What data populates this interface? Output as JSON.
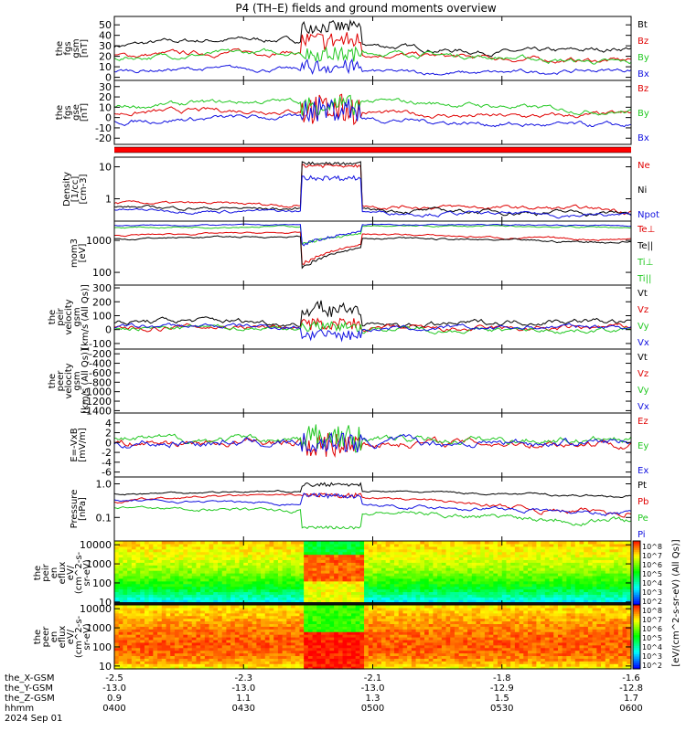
{
  "title": "P4 (TH–E) fields and ground moments overview",
  "colors": {
    "black": "#000000",
    "red": "#e00000",
    "green": "#22c822",
    "blue": "#1010e0",
    "bar": "#ff0000"
  },
  "panels": [
    {
      "id": "bgsm",
      "ylabel": [
        "the",
        "fgs",
        "gsm",
        "[nT]"
      ],
      "ticks": [
        "0",
        "10",
        "20",
        "30",
        "40",
        "50"
      ],
      "ylim": [
        -3,
        58
      ],
      "legend": [
        [
          "Bt",
          "black"
        ],
        [
          "Bz",
          "red"
        ],
        [
          "By",
          "green"
        ],
        [
          "Bx",
          "blue"
        ]
      ]
    },
    {
      "id": "bgse",
      "ylabel": [
        "the",
        "fgs",
        "gse",
        "[nT]"
      ],
      "ticks": [
        "-20",
        "-10",
        "0",
        "10",
        "20",
        "30"
      ],
      "ylim": [
        -26,
        36
      ],
      "legend": [
        [
          "Bz",
          "red"
        ],
        [
          "By",
          "green"
        ],
        [
          "Bx",
          "blue"
        ]
      ]
    },
    {
      "id": "density",
      "ylabel": [
        "Density",
        "[1/cc]",
        "[cm-3]"
      ],
      "ticks": [
        "1",
        "10"
      ],
      "log": true,
      "ylim": [
        0.2,
        20
      ],
      "legend": [
        [
          "Ne",
          "red"
        ],
        [
          "Ni",
          "black"
        ],
        [
          "Npot",
          "blue"
        ]
      ]
    },
    {
      "id": "temp",
      "ylabel": [
        "mom3",
        "[eV]"
      ],
      "ticks": [
        "100",
        "1000"
      ],
      "log": true,
      "ylim": [
        40,
        4000
      ],
      "legend": [
        [
          "Te⊥",
          "red"
        ],
        [
          "Te||",
          "black"
        ],
        [
          "Ti⊥",
          "green"
        ],
        [
          "Ti||",
          "green"
        ]
      ]
    },
    {
      "id": "vpeir",
      "ylabel": [
        "the",
        "peir",
        "velocity",
        "gsm",
        "[km/s (All Qs)]"
      ],
      "ticks": [
        "-100",
        "0",
        "100",
        "200",
        "300"
      ],
      "ylim": [
        -140,
        320
      ],
      "legend": [
        [
          "Vt",
          "black"
        ],
        [
          "Vz",
          "red"
        ],
        [
          "Vy",
          "green"
        ],
        [
          "Vx",
          "blue"
        ]
      ]
    },
    {
      "id": "vpeer",
      "ylabel": [
        "the",
        "peer",
        "velocity",
        "gsm",
        "[km/s (All Qs)]"
      ],
      "ticks": [
        "-1400",
        "-1200",
        "-1000",
        "-800",
        "-600",
        "-400",
        "-200"
      ],
      "ylim": [
        -1450,
        -100
      ],
      "legend": [
        [
          "Vt",
          "black"
        ],
        [
          "Vz",
          "red"
        ],
        [
          "Vy",
          "green"
        ],
        [
          "Vx",
          "blue"
        ]
      ]
    },
    {
      "id": "efield",
      "ylabel": [
        "E=-VxB",
        "[mV/m]"
      ],
      "ticks": [
        "-6",
        "-4",
        "-2",
        "0",
        "2",
        "4"
      ],
      "ylim": [
        -7,
        6
      ],
      "legend": [
        [
          "Ez",
          "red"
        ],
        [
          "Ey",
          "green"
        ],
        [
          "Ex",
          "blue"
        ]
      ]
    },
    {
      "id": "pressure",
      "ylabel": [
        "Pressure",
        "[nPa]"
      ],
      "ticks": [
        "0.1",
        "1.0"
      ],
      "log": true,
      "ylim": [
        0.02,
        1.6
      ],
      "legend": [
        [
          "Pt",
          "black"
        ],
        [
          "Pb",
          "red"
        ],
        [
          "Pe",
          "green"
        ],
        [
          "Pi",
          "blue"
        ]
      ]
    },
    {
      "id": "ionspec",
      "ylabel": [
        "the",
        "peir",
        "en",
        "eflux",
        "eV/",
        "(cm^2-s-",
        "sr-eV)"
      ],
      "ticks": [
        "10",
        "100",
        "1000",
        "10000"
      ],
      "spectrogram": true
    },
    {
      "id": "elecspec",
      "ylabel": [
        "the",
        "peer",
        "en",
        "eflux",
        "eV/",
        "(cm^2-s-",
        "sr-eV)"
      ],
      "ticks": [
        "10",
        "100",
        "1000",
        "10000"
      ],
      "spectrogram": true
    }
  ],
  "colorbar": {
    "label": "[eV/(cm^2-s-sr-eV) (All Qs)]",
    "ticks": [
      "10^8",
      "10^7",
      "10^6",
      "10^5",
      "10^4",
      "10^3",
      "10^2"
    ]
  },
  "xaxis": {
    "rows": [
      {
        "label": "the_X-GSM",
        "values": [
          "-2.5",
          "-2.3",
          "-2.1",
          "-1.8",
          "-1.6"
        ]
      },
      {
        "label": "the_Y-GSM",
        "values": [
          "-13.0",
          "-13.0",
          "-13.0",
          "-12.9",
          "-12.8"
        ]
      },
      {
        "label": "the_Z-GSM",
        "values": [
          "0.9",
          "1.1",
          "1.3",
          "1.5",
          "1.7"
        ]
      },
      {
        "label": "hhmm",
        "values": [
          "0400",
          "0430",
          "0500",
          "0530",
          "0600"
        ]
      }
    ],
    "date": "2024 Sep 01"
  },
  "chart_data": {
    "type": "line",
    "title": "P4 (TH–E) fields and ground moments overview",
    "x_range": [
      "0400",
      "0600"
    ],
    "x_ticks": [
      "0400",
      "0430",
      "0500",
      "0530",
      "0600"
    ],
    "date": "2024 Sep 01",
    "series": [
      {
        "name": "Bt",
        "panel": "bgsm",
        "x": [
          "0400",
          "0415",
          "0430",
          "0445",
          "0450",
          "0455",
          "0500",
          "0515",
          "0530",
          "0545",
          "0600"
        ],
        "y": [
          30,
          30,
          32,
          36,
          50,
          52,
          42,
          37,
          36,
          38,
          40
        ]
      },
      {
        "name": "Bz",
        "panel": "bgsm",
        "x": [
          "0400",
          "0415",
          "0430",
          "0445",
          "0450",
          "0455",
          "0500",
          "0515",
          "0530",
          "0545",
          "0600"
        ],
        "y": [
          18,
          22,
          25,
          28,
          40,
          35,
          28,
          23,
          22,
          20,
          22
        ]
      },
      {
        "name": "By",
        "panel": "bgsm",
        "x": [
          "0400",
          "0415",
          "0430",
          "0445",
          "0450",
          "0455",
          "0500",
          "0515",
          "0530",
          "0545",
          "0600"
        ],
        "y": [
          15,
          17,
          22,
          22,
          25,
          20,
          26,
          25,
          22,
          20,
          24
        ]
      },
      {
        "name": "Bx",
        "panel": "bgsm",
        "x": [
          "0400",
          "0415",
          "0430",
          "0445",
          "0450",
          "0455",
          "0500",
          "0515",
          "0530",
          "0545",
          "0600"
        ],
        "y": [
          8,
          6,
          5,
          3,
          12,
          14,
          5,
          3,
          3,
          6,
          8
        ]
      },
      {
        "name": "Ne",
        "panel": "density",
        "x": [
          "0400",
          "0430",
          "0445",
          "0450",
          "0455",
          "0500",
          "0515",
          "0530",
          "0600"
        ],
        "y": [
          0.7,
          0.6,
          0.5,
          12,
          10,
          0.6,
          0.5,
          0.45,
          0.4
        ]
      },
      {
        "name": "Ni",
        "panel": "density",
        "x": [
          "0400",
          "0430",
          "0445",
          "0450",
          "0455",
          "0500",
          "0515",
          "0530",
          "0600"
        ],
        "y": [
          0.5,
          0.45,
          0.4,
          14,
          12,
          0.5,
          0.4,
          0.38,
          0.35
        ]
      },
      {
        "name": "Npot",
        "panel": "density",
        "x": [
          "0400",
          "0430",
          "0445",
          "0450",
          "0455",
          "0500",
          "0515",
          "0530",
          "0600"
        ],
        "y": [
          0.4,
          0.35,
          0.35,
          5,
          4,
          0.4,
          0.33,
          0.3,
          0.3
        ]
      },
      {
        "name": "Pt",
        "panel": "pressure",
        "x": [
          "0400",
          "0430",
          "0445",
          "0450",
          "0455",
          "0500",
          "0530",
          "0600"
        ],
        "y": [
          0.5,
          0.55,
          0.6,
          1.0,
          0.9,
          0.5,
          0.5,
          0.55
        ]
      },
      {
        "name": "Pb",
        "panel": "pressure",
        "x": [
          "0400",
          "0430",
          "0445",
          "0450",
          "0455",
          "0500",
          "0530",
          "0600"
        ],
        "y": [
          0.25,
          0.3,
          0.35,
          0.5,
          0.4,
          0.3,
          0.35,
          0.45
        ]
      },
      {
        "name": "Pe",
        "panel": "pressure",
        "x": [
          "0400",
          "0430",
          "0445",
          "0450",
          "0455",
          "0500",
          "0530",
          "0600"
        ],
        "y": [
          0.25,
          0.2,
          0.15,
          0.05,
          0.05,
          0.2,
          0.15,
          0.06
        ]
      },
      {
        "name": "Pi",
        "panel": "pressure",
        "x": [
          "0400",
          "0430",
          "0445",
          "0450",
          "0455",
          "0500",
          "0530",
          "0600"
        ],
        "y": [
          0.35,
          0.3,
          0.3,
          0.5,
          0.4,
          0.3,
          0.2,
          0.08
        ]
      }
    ]
  }
}
